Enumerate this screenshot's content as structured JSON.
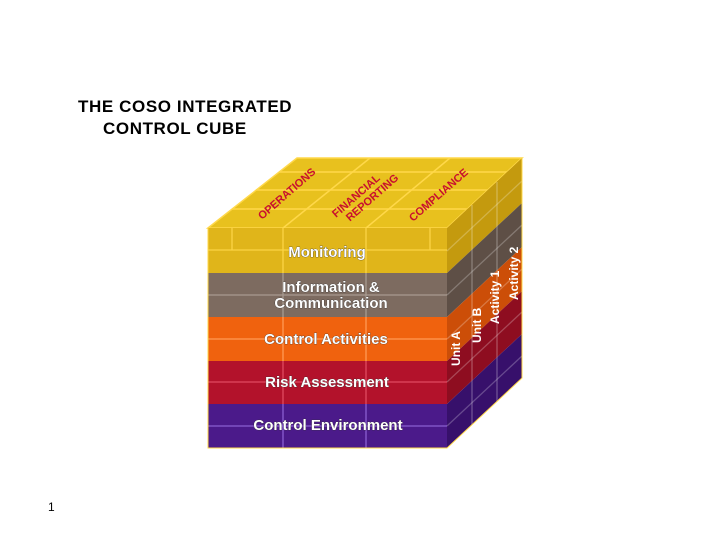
{
  "title": {
    "line1": "THE COSO INTEGRATED",
    "line2": "CONTROL CUBE"
  },
  "page_number": "1",
  "cube": {
    "layers": [
      {
        "label": "Monitoring",
        "color": "#e0b51a",
        "side_color": "#c49a0e"
      },
      {
        "label_line1": "Information &",
        "label_line2": "Communication",
        "color": "#7d6b60",
        "side_color": "#5e4f46"
      },
      {
        "label": "Control Activities",
        "color": "#f0620e",
        "side_color": "#cc4e08"
      },
      {
        "label": "Risk Assessment",
        "color": "#b3122b",
        "side_color": "#8e0d20"
      },
      {
        "label": "Control Environment",
        "color": "#4b1a8a",
        "side_color": "#37106b"
      }
    ],
    "top_labels": {
      "operations": "OPERATIONS",
      "financial_line1": "FINANCIAL",
      "financial_line2": "REPORTING",
      "compliance": "COMPLIANCE"
    },
    "side_labels": [
      "Unit A",
      "Unit B",
      "Activity 1",
      "Activity 2"
    ],
    "top_color": "#e8c11e",
    "grid_color": "#ffd84a"
  }
}
